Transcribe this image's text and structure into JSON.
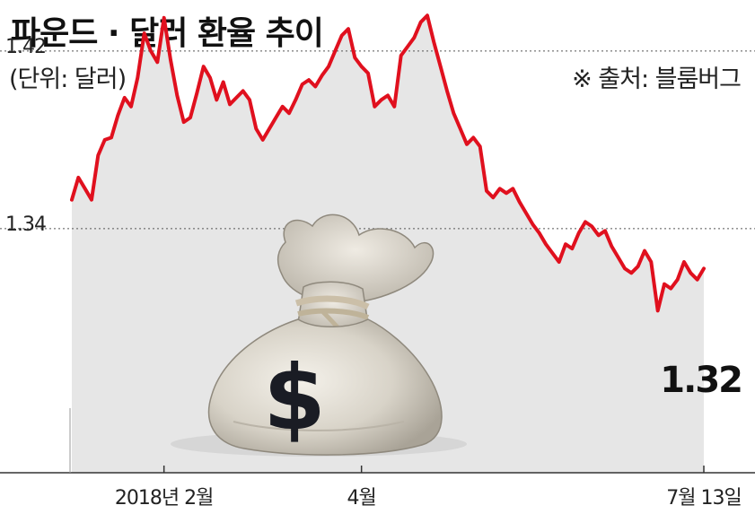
{
  "chart_data": {
    "type": "line",
    "title": "파운드 · 달러 환율 추이",
    "unit_label": "(단위: 달러)",
    "source": "※ 출처: 블룸버그",
    "yticks": [
      1.42,
      1.34
    ],
    "ylim": [
      1.23,
      1.443
    ],
    "xticks": [
      "2018년 2월",
      "4월",
      "7월 13일"
    ],
    "last_value_label": "1.32",
    "colors": {
      "line": "#e0101e",
      "area": "#e6e6e6",
      "grid": "#555555"
    },
    "series": [
      {
        "values": [
          1.353,
          1.363,
          1.358,
          1.353,
          1.373,
          1.38,
          1.381,
          1.391,
          1.399,
          1.395,
          1.408,
          1.428,
          1.42,
          1.415,
          1.435,
          1.416,
          1.4,
          1.388,
          1.39,
          1.401,
          1.413,
          1.408,
          1.398,
          1.406,
          1.396,
          1.399,
          1.402,
          1.398,
          1.385,
          1.38,
          1.385,
          1.39,
          1.395,
          1.392,
          1.398,
          1.405,
          1.407,
          1.404,
          1.409,
          1.413,
          1.42,
          1.427,
          1.43,
          1.417,
          1.413,
          1.41,
          1.395,
          1.398,
          1.4,
          1.395,
          1.418,
          1.422,
          1.426,
          1.433,
          1.436,
          1.424,
          1.413,
          1.402,
          1.392,
          1.385,
          1.378,
          1.381,
          1.377,
          1.357,
          1.354,
          1.358,
          1.356,
          1.358,
          1.352,
          1.347,
          1.342,
          1.338,
          1.333,
          1.329,
          1.325,
          1.333,
          1.331,
          1.338,
          1.343,
          1.341,
          1.337,
          1.339,
          1.332,
          1.327,
          1.322,
          1.32,
          1.323,
          1.33,
          1.325,
          1.303,
          1.315,
          1.313,
          1.317,
          1.325,
          1.32,
          1.317,
          1.322
        ]
      }
    ]
  },
  "illustration": {
    "name": "money-bag-icon",
    "symbol": "$"
  }
}
